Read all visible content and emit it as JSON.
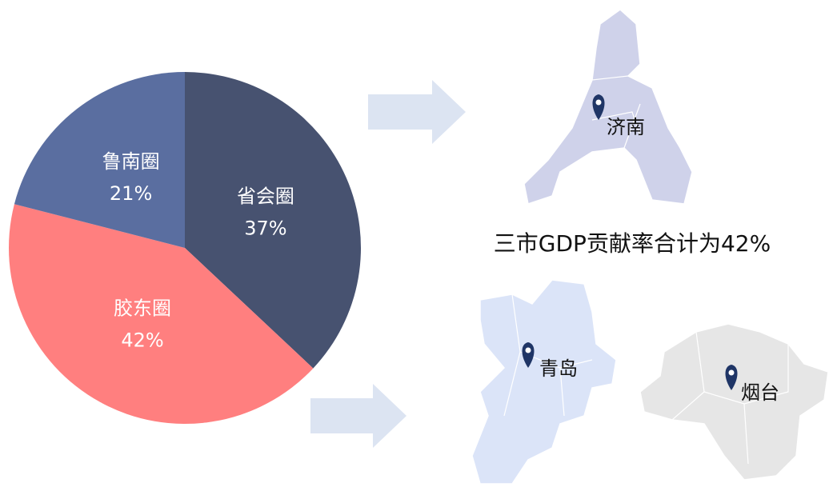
{
  "chart_data": {
    "type": "pie",
    "categories": [
      "省会圈",
      "胶东圈",
      "鲁南圈"
    ],
    "values": [
      37,
      42,
      21
    ],
    "value_labels": [
      "37%",
      "42%",
      "21%"
    ],
    "colors": [
      "#475270",
      "#ff7f7f",
      "#5a6ea0"
    ],
    "annotation": "三市GDP贡献率合计为42%",
    "map_labels": [
      "济南",
      "青岛",
      "烟台"
    ]
  }
}
